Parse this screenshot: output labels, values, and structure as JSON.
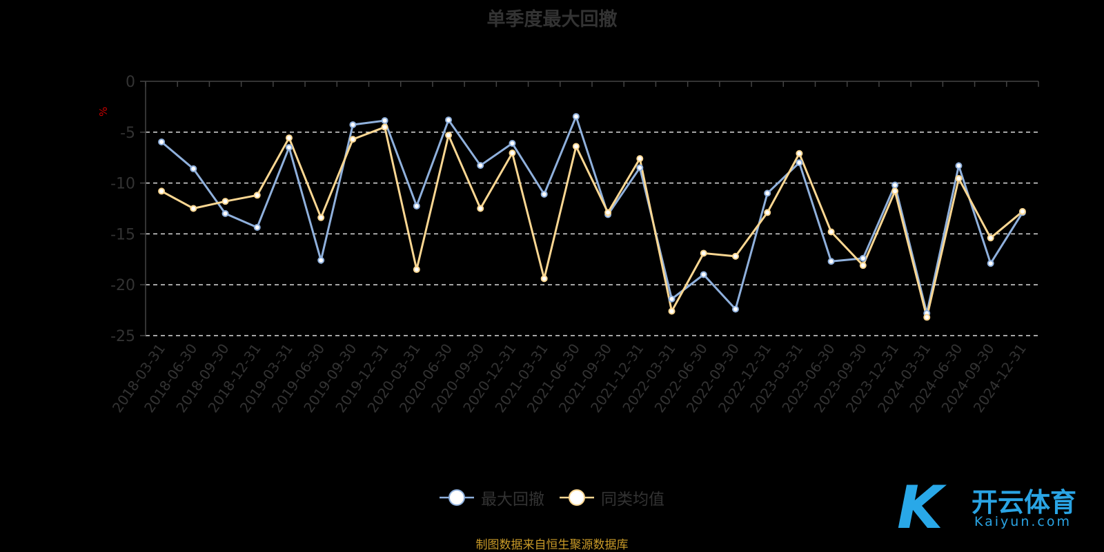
{
  "chart_data": {
    "type": "line",
    "title": "单季度最大回撤",
    "ylabel": "%",
    "ylim": [
      -25,
      0
    ],
    "yticks": [
      0,
      -5,
      -10,
      -15,
      -20,
      -25
    ],
    "grid": true,
    "legend_position": "bottom",
    "categories": [
      "2018-03-31",
      "2018-06-30",
      "2018-09-30",
      "2018-12-31",
      "2019-03-31",
      "2019-06-30",
      "2019-09-30",
      "2019-12-31",
      "2020-03-31",
      "2020-06-30",
      "2020-09-30",
      "2020-12-31",
      "2021-03-31",
      "2021-06-30",
      "2021-09-30",
      "2021-12-31",
      "2022-03-31",
      "2022-06-30",
      "2022-09-30",
      "2022-12-31",
      "2023-03-31",
      "2023-06-30",
      "2023-09-30",
      "2023-12-31",
      "2024-03-31",
      "2024-06-30",
      "2024-09-30",
      "2024-12-31"
    ],
    "series": [
      {
        "name": "最大回撤",
        "color": "#8fb0dc",
        "values": [
          -5.96,
          -8.6,
          -13.0,
          -14.36,
          -6.5,
          -17.6,
          -4.27,
          -3.86,
          -12.26,
          -3.8,
          -8.27,
          -6.1,
          -11.1,
          -3.46,
          -13.1,
          -8.5,
          -21.4,
          -19.0,
          -22.4,
          -11.0,
          -8.0,
          -17.7,
          -17.4,
          -10.2,
          -22.8,
          -8.3,
          -17.9,
          -12.9
        ]
      },
      {
        "name": "同类均值",
        "color": "#fbd792",
        "values": [
          -10.8,
          -12.5,
          -11.8,
          -11.2,
          -5.56,
          -13.4,
          -5.7,
          -4.5,
          -18.5,
          -5.3,
          -12.5,
          -7.05,
          -19.4,
          -6.4,
          -12.9,
          -7.6,
          -22.6,
          -16.9,
          -17.2,
          -12.9,
          -7.1,
          -14.8,
          -18.1,
          -10.8,
          -23.2,
          -9.55,
          -15.4,
          -12.8
        ]
      }
    ]
  },
  "source": "制图数据来自恒生聚源数据库",
  "logo": {
    "cn": "开云体育",
    "en": "Kaiyun.com",
    "mark": "K"
  },
  "colors": {
    "axis": "#444444",
    "grid": "#dddddd",
    "ylabel": "#cc0000",
    "source": "#c99a28"
  }
}
